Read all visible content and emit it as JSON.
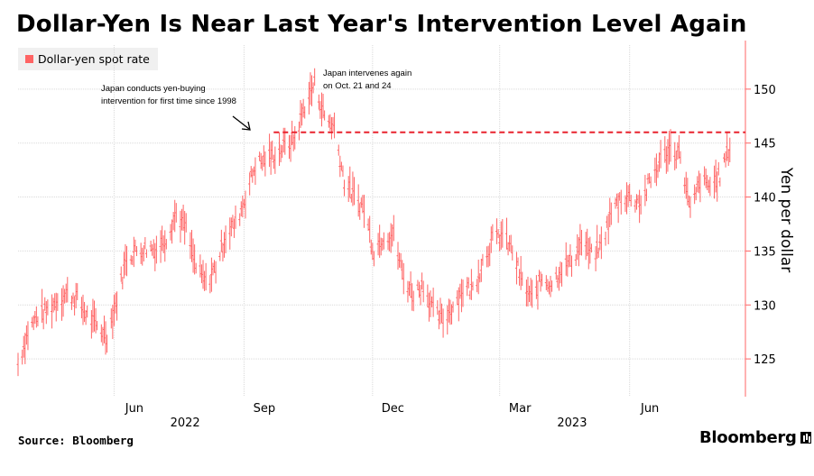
{
  "title": "Dollar-Yen Is Near Last Year's Intervention Level Again",
  "source": "Source: Bloomberg",
  "brand": "Bloomberg",
  "colors": {
    "series": "#ff6464",
    "reference_line": "#e8222d",
    "grid": "#d9d9d9"
  },
  "chart_data": {
    "type": "line",
    "ylabel": "Yen per dollar",
    "ylim": [
      121.5,
      154.5
    ],
    "yticks": [
      125,
      130,
      135,
      140,
      145,
      150
    ],
    "x_month_ticks": [
      "Jun",
      "Sep",
      "Dec",
      "Mar",
      "Jun"
    ],
    "x_year_labels": [
      "2022",
      "2023"
    ],
    "legend": [
      "Dollar-yen spot rate"
    ],
    "grid": true,
    "legend_position": "top-left",
    "reference_line": {
      "y": 146.0,
      "style": "dashed"
    },
    "annotations": [
      {
        "text_lines": [
          "Japan conducts yen-buying",
          "intervention for first time since 1998"
        ],
        "date": "2022-09-22"
      },
      {
        "text_lines": [
          "Japan intervenes again",
          "on Oct. 21 and 24"
        ],
        "date": "2022-10-21"
      }
    ],
    "series": [
      {
        "name": "Dollar-yen spot rate",
        "x": [
          "2022-03-25",
          "2022-04-01",
          "2022-04-08",
          "2022-04-15",
          "2022-04-22",
          "2022-04-29",
          "2022-05-06",
          "2022-05-13",
          "2022-05-20",
          "2022-05-27",
          "2022-06-03",
          "2022-06-10",
          "2022-06-17",
          "2022-06-24",
          "2022-07-01",
          "2022-07-08",
          "2022-07-15",
          "2022-07-22",
          "2022-07-29",
          "2022-08-05",
          "2022-08-12",
          "2022-08-19",
          "2022-08-26",
          "2022-09-02",
          "2022-09-09",
          "2022-09-16",
          "2022-09-23",
          "2022-09-30",
          "2022-10-07",
          "2022-10-14",
          "2022-10-21",
          "2022-10-28",
          "2022-11-04",
          "2022-11-11",
          "2022-11-18",
          "2022-11-25",
          "2022-12-02",
          "2022-12-09",
          "2022-12-16",
          "2022-12-23",
          "2022-12-30",
          "2023-01-06",
          "2023-01-13",
          "2023-01-20",
          "2023-01-27",
          "2023-02-03",
          "2023-02-10",
          "2023-02-17",
          "2023-02-24",
          "2023-03-03",
          "2023-03-10",
          "2023-03-17",
          "2023-03-24",
          "2023-03-31",
          "2023-04-07",
          "2023-04-14",
          "2023-04-21",
          "2023-04-28",
          "2023-05-05",
          "2023-05-12",
          "2023-05-19",
          "2023-05-26",
          "2023-06-02",
          "2023-06-09",
          "2023-06-16",
          "2023-06-23",
          "2023-06-30",
          "2023-07-07",
          "2023-07-14",
          "2023-07-21",
          "2023-07-28",
          "2023-08-04",
          "2023-08-11"
        ],
        "values": [
          124.5,
          127.5,
          129.0,
          129.5,
          130.5,
          131.0,
          130.5,
          129.0,
          128.0,
          127.2,
          130.5,
          134.5,
          135.0,
          135.3,
          135.2,
          136.3,
          138.5,
          137.0,
          133.5,
          132.0,
          133.5,
          136.5,
          137.5,
          140.0,
          143.0,
          143.5,
          144.0,
          144.7,
          145.4,
          148.5,
          150.5,
          147.5,
          146.5,
          141.5,
          140.0,
          139.0,
          135.0,
          136.5,
          136.5,
          132.5,
          131.0,
          132.0,
          129.5,
          128.5,
          130.0,
          131.5,
          131.5,
          134.0,
          136.0,
          136.5,
          135.0,
          132.0,
          130.5,
          132.5,
          132.0,
          133.5,
          134.0,
          136.0,
          134.5,
          135.5,
          138.5,
          140.0,
          140.0,
          139.5,
          141.5,
          143.5,
          144.5,
          144.0,
          138.5,
          141.5,
          141.0,
          142.0,
          144.7
        ]
      }
    ]
  }
}
